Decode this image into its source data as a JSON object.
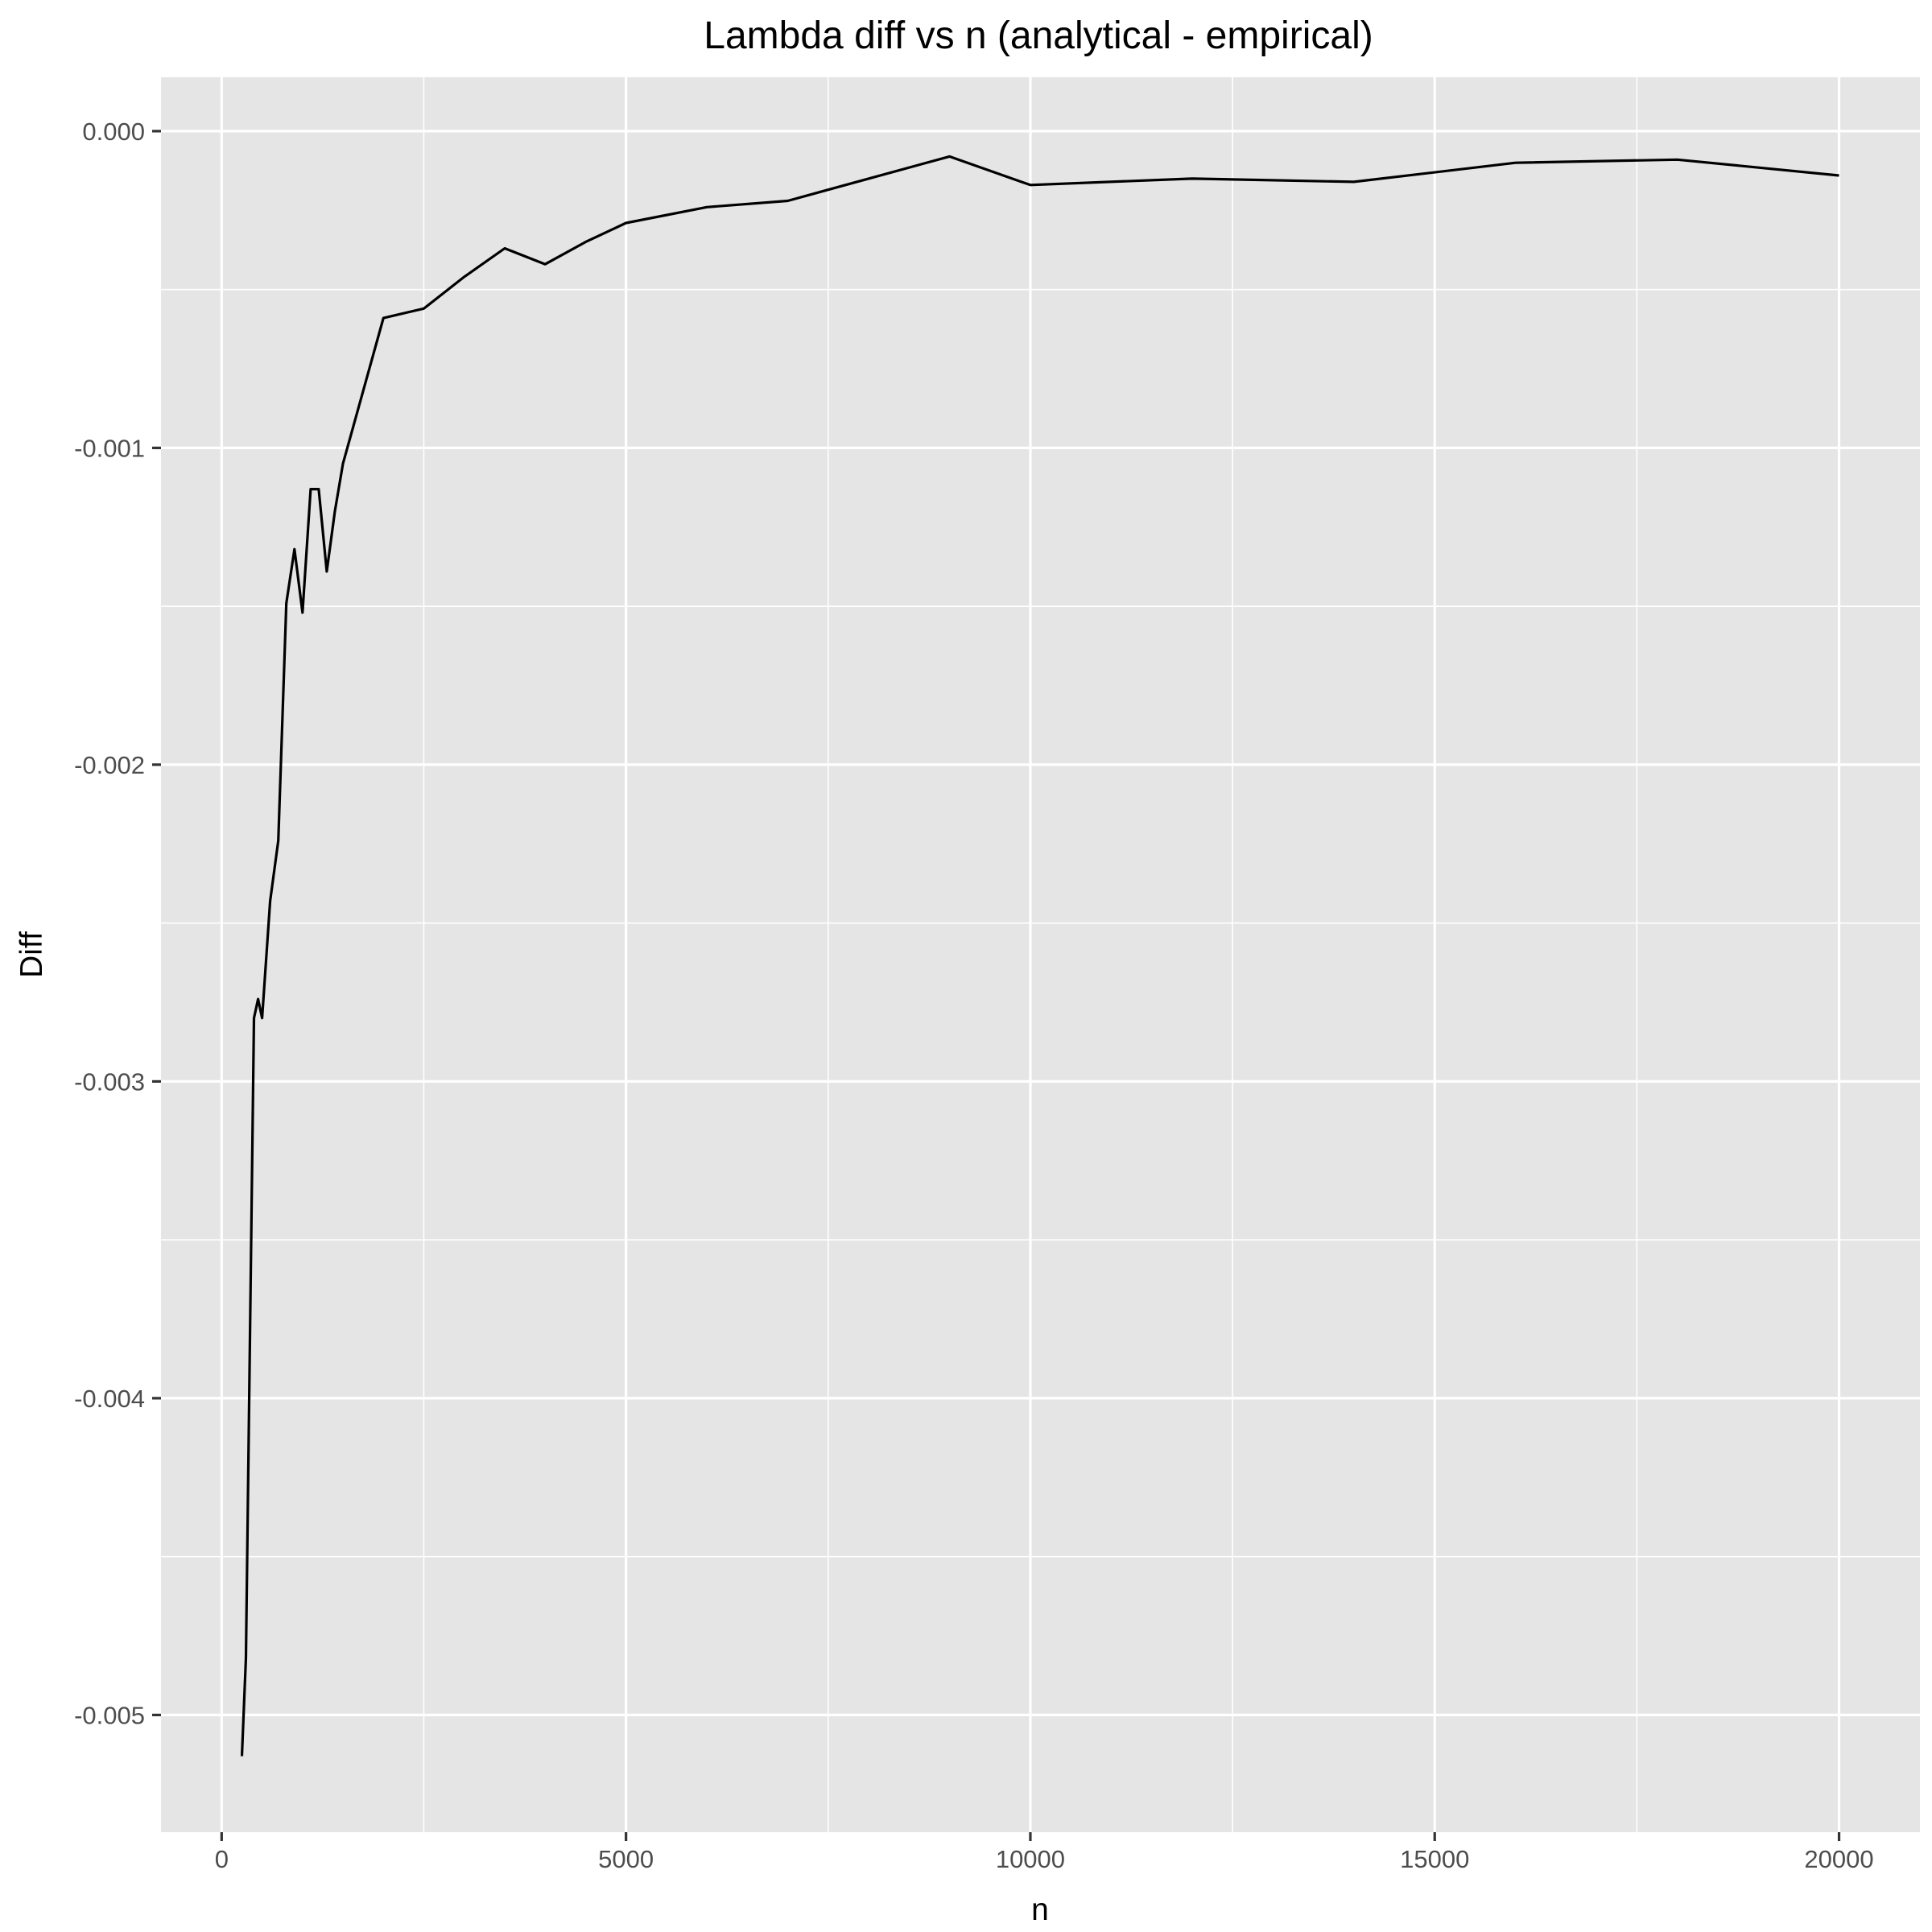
{
  "chart_data": {
    "type": "line",
    "title": "Lambda diff vs n (analytical - empirical)",
    "xlabel": "n",
    "ylabel": "Diff",
    "xlim": [
      -750,
      21000
    ],
    "ylim": [
      -0.00537,
      0.00017
    ],
    "x_ticks": [
      0,
      5000,
      10000,
      15000,
      20000
    ],
    "x_tick_labels": [
      "0",
      "5000",
      "10000",
      "15000",
      "20000"
    ],
    "x_minor_ticks": [
      2500,
      7500,
      12500,
      17500
    ],
    "y_ticks": [
      0,
      -0.001,
      -0.002,
      -0.003,
      -0.004,
      -0.005
    ],
    "y_tick_labels": [
      "0.000",
      "-0.001",
      "-0.002",
      "-0.003",
      "-0.004",
      "-0.005"
    ],
    "y_minor_ticks": [
      -0.0005,
      -0.0015,
      -0.0025,
      -0.0035,
      -0.0045
    ],
    "grid": true,
    "panel_background": "#e5e5e5",
    "grid_color": "#ffffff",
    "line_color": "#000000",
    "series": [
      {
        "x": [
          250,
          300,
          400,
          450,
          500,
          600,
          700,
          800,
          900,
          1000,
          1100,
          1200,
          1300,
          1400,
          1500,
          2000,
          2500,
          3000,
          3500,
          4000,
          4500,
          5000,
          6000,
          7000,
          8000,
          9000,
          10000,
          12000,
          14000,
          16000,
          18000,
          20000
        ],
        "y": [
          -0.00513,
          -0.00482,
          -0.0028,
          -0.00274,
          -0.0028,
          -0.00243,
          -0.00224,
          -0.00149,
          -0.00132,
          -0.00152,
          -0.00113,
          -0.00113,
          -0.00139,
          -0.0012,
          -0.00105,
          -0.00059,
          -0.00056,
          -0.00046,
          -0.00037,
          -0.00042,
          -0.00035,
          -0.00029,
          -0.00024,
          -0.00022,
          -0.00015,
          -8e-05,
          -0.00017,
          -0.00015,
          -0.00016,
          -0.0001,
          -9e-05,
          -0.00014
        ]
      }
    ]
  }
}
